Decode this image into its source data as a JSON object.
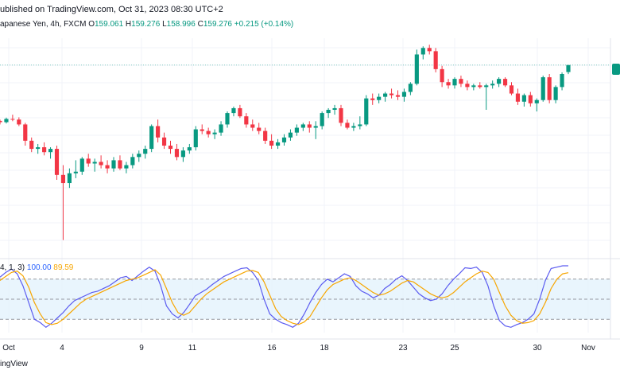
{
  "header": {
    "published": "ublished on TradingView.com, Oct 31, 2023 08:30 UTC+2",
    "symbol": "apanese Yen, 4h, FXCM",
    "open_label": "O",
    "open_value": "159.061",
    "high_label": "H",
    "high_value": "159.276",
    "low_label": "L",
    "low_value": "158.996",
    "close_label": "C",
    "close_value": "159.276",
    "change": "+0.215 (+0.14%)"
  },
  "indicator": {
    "params": "4, 1, 3)",
    "k_value": "100.00",
    "d_value": "89.59"
  },
  "footer": {
    "brand": "ingView"
  },
  "colors": {
    "up": "#089981",
    "down": "#f23645",
    "k_line": "#5b5bf0",
    "d_line": "#f7a600",
    "band_fill": "#e3f2fd"
  },
  "chart_data": [
    {
      "type": "candlestick",
      "title": "",
      "xlabel": "",
      "ylabel": "",
      "x_ticks": [
        "Oct",
        "4",
        "9",
        "11",
        "16",
        "18",
        "23",
        "25",
        "30",
        "Nov"
      ],
      "last_price_line": 159.276,
      "ylim": [
        153.5,
        160.1
      ],
      "candles": [
        [
          157.56,
          157.6,
          157.45,
          157.52
        ],
        [
          157.52,
          157.66,
          157.48,
          157.62
        ],
        [
          157.62,
          157.75,
          157.55,
          157.6
        ],
        [
          157.6,
          157.67,
          157.4,
          157.45
        ],
        [
          157.45,
          157.5,
          156.8,
          156.95
        ],
        [
          156.95,
          157.05,
          156.6,
          156.7
        ],
        [
          156.7,
          156.85,
          156.55,
          156.75
        ],
        [
          156.75,
          156.9,
          156.5,
          156.6
        ],
        [
          156.6,
          156.75,
          156.4,
          156.7
        ],
        [
          156.7,
          156.8,
          155.75,
          155.9
        ],
        [
          155.9,
          156.2,
          153.9,
          155.65
        ],
        [
          155.65,
          156.1,
          155.5,
          155.95
        ],
        [
          155.95,
          156.35,
          155.8,
          156.0
        ],
        [
          156.0,
          156.45,
          155.9,
          156.4
        ],
        [
          156.4,
          156.55,
          156.15,
          156.25
        ],
        [
          156.25,
          156.4,
          156.0,
          156.3
        ],
        [
          156.3,
          156.5,
          156.1,
          156.2
        ],
        [
          156.2,
          156.35,
          155.95,
          156.1
        ],
        [
          156.1,
          156.45,
          156.0,
          156.35
        ],
        [
          156.35,
          156.5,
          156.05,
          156.1
        ],
        [
          156.1,
          156.3,
          155.95,
          156.2
        ],
        [
          156.2,
          156.55,
          156.1,
          156.45
        ],
        [
          156.45,
          156.65,
          156.3,
          156.55
        ],
        [
          156.55,
          156.8,
          156.4,
          156.7
        ],
        [
          156.7,
          157.45,
          156.6,
          157.4
        ],
        [
          157.4,
          157.6,
          156.9,
          157.05
        ],
        [
          157.05,
          157.2,
          156.7,
          156.8
        ],
        [
          156.8,
          156.95,
          156.55,
          156.7
        ],
        [
          156.7,
          156.85,
          156.35,
          156.45
        ],
        [
          156.45,
          156.75,
          156.3,
          156.65
        ],
        [
          156.65,
          156.85,
          156.55,
          156.75
        ],
        [
          156.75,
          157.4,
          156.65,
          157.3
        ],
        [
          157.3,
          157.45,
          157.15,
          157.25
        ],
        [
          157.25,
          157.35,
          157.05,
          157.15
        ],
        [
          157.15,
          157.3,
          157.0,
          157.2
        ],
        [
          157.2,
          157.55,
          157.1,
          157.45
        ],
        [
          157.45,
          157.85,
          157.35,
          157.8
        ],
        [
          157.8,
          158.0,
          157.7,
          157.95
        ],
        [
          157.95,
          158.05,
          157.65,
          157.7
        ],
        [
          157.7,
          157.8,
          157.35,
          157.45
        ],
        [
          157.45,
          157.6,
          157.25,
          157.35
        ],
        [
          157.35,
          157.5,
          157.15,
          157.25
        ],
        [
          157.25,
          157.35,
          156.85,
          156.95
        ],
        [
          156.95,
          157.15,
          156.7,
          156.8
        ],
        [
          156.8,
          157.0,
          156.7,
          156.9
        ],
        [
          156.9,
          157.15,
          156.8,
          157.05
        ],
        [
          157.05,
          157.3,
          156.95,
          157.2
        ],
        [
          157.2,
          157.45,
          157.1,
          157.35
        ],
        [
          157.35,
          157.5,
          157.25,
          157.45
        ],
        [
          157.45,
          157.55,
          157.2,
          157.35
        ],
        [
          157.35,
          157.55,
          157.0,
          157.4
        ],
        [
          157.4,
          157.85,
          157.3,
          157.8
        ],
        [
          157.8,
          157.95,
          157.65,
          157.9
        ],
        [
          157.9,
          158.05,
          157.75,
          157.95
        ],
        [
          157.95,
          158.05,
          157.4,
          157.5
        ],
        [
          157.5,
          157.6,
          157.3,
          157.35
        ],
        [
          157.35,
          157.5,
          157.25,
          157.4
        ],
        [
          157.4,
          157.7,
          157.3,
          157.45
        ],
        [
          157.45,
          158.35,
          157.4,
          158.25
        ],
        [
          158.25,
          158.4,
          158.05,
          158.2
        ],
        [
          158.2,
          158.4,
          158.1,
          158.3
        ],
        [
          158.3,
          158.45,
          158.15,
          158.4
        ],
        [
          158.4,
          158.55,
          158.25,
          158.35
        ],
        [
          158.35,
          158.5,
          158.2,
          158.3
        ],
        [
          158.3,
          158.55,
          158.15,
          158.45
        ],
        [
          158.45,
          158.75,
          158.35,
          158.7
        ],
        [
          158.7,
          159.75,
          158.65,
          159.6
        ],
        [
          159.6,
          159.85,
          159.45,
          159.8
        ],
        [
          159.8,
          159.9,
          159.6,
          159.7
        ],
        [
          159.7,
          159.8,
          159.05,
          159.15
        ],
        [
          159.15,
          159.25,
          158.6,
          158.75
        ],
        [
          158.75,
          158.85,
          158.55,
          158.65
        ],
        [
          158.65,
          158.9,
          158.55,
          158.85
        ],
        [
          158.85,
          158.95,
          158.6,
          158.7
        ],
        [
          158.7,
          158.8,
          158.5,
          158.6
        ],
        [
          158.6,
          158.7,
          158.5,
          158.65
        ],
        [
          158.65,
          158.75,
          158.55,
          158.6
        ],
        [
          158.6,
          158.7,
          157.9,
          158.65
        ],
        [
          158.65,
          158.8,
          158.55,
          158.7
        ],
        [
          158.7,
          158.9,
          158.6,
          158.85
        ],
        [
          158.85,
          158.9,
          158.6,
          158.65
        ],
        [
          158.65,
          158.75,
          158.35,
          158.4
        ],
        [
          158.4,
          158.55,
          158.05,
          158.15
        ],
        [
          158.15,
          158.4,
          158.0,
          158.35
        ],
        [
          158.35,
          158.45,
          158.0,
          158.1
        ],
        [
          158.1,
          158.25,
          157.85,
          158.2
        ],
        [
          158.2,
          158.95,
          158.15,
          158.9
        ],
        [
          158.9,
          159.0,
          158.1,
          158.2
        ],
        [
          158.2,
          158.65,
          158.1,
          158.6
        ],
        [
          158.6,
          159.05,
          158.5,
          159.0
        ],
        [
          159.06,
          159.276,
          158.996,
          159.276
        ]
      ]
    },
    {
      "type": "line",
      "title": "",
      "ylim": [
        0,
        100
      ],
      "bands": [
        80,
        50,
        20
      ],
      "series": [
        {
          "values": [
            83,
            90,
            95,
            88,
            70,
            45,
            20,
            15,
            8,
            14,
            22,
            30,
            40,
            48,
            52,
            56,
            60,
            62,
            66,
            70,
            76,
            82,
            84,
            78,
            85,
            92,
            98,
            92,
            70,
            40,
            28,
            22,
            30,
            42,
            55,
            60,
            65,
            72,
            78,
            84,
            88,
            92,
            96,
            97,
            90,
            78,
            50,
            28,
            20,
            15,
            12,
            8,
            14,
            28,
            45,
            60,
            72,
            80,
            76,
            82,
            88,
            84,
            70,
            62,
            58,
            52,
            56,
            66,
            72,
            80,
            85,
            78,
            68,
            58,
            52,
            48,
            50,
            58,
            70,
            80,
            88,
            97,
            96,
            98,
            90,
            70,
            40,
            18,
            10,
            8,
            12,
            15,
            20,
            28,
            50,
            78,
            96,
            98,
            100,
            100
          ]
        },
        {
          "values": [
            78,
            84,
            90,
            92,
            85,
            68,
            45,
            28,
            15,
            12,
            14,
            20,
            28,
            36,
            44,
            50,
            54,
            58,
            62,
            66,
            70,
            74,
            78,
            80,
            82,
            86,
            90,
            94,
            86,
            66,
            45,
            30,
            26,
            30,
            40,
            50,
            58,
            64,
            70,
            76,
            80,
            84,
            88,
            92,
            93,
            90,
            76,
            56,
            36,
            24,
            18,
            14,
            12,
            16,
            24,
            38,
            52,
            64,
            72,
            76,
            80,
            82,
            78,
            72,
            66,
            60,
            56,
            58,
            62,
            68,
            74,
            78,
            76,
            70,
            64,
            58,
            54,
            52,
            54,
            60,
            68,
            76,
            82,
            88,
            92,
            90,
            80,
            60,
            40,
            26,
            18,
            14,
            15,
            18,
            28,
            45,
            66,
            80,
            88,
            89.59
          ]
        }
      ]
    }
  ]
}
